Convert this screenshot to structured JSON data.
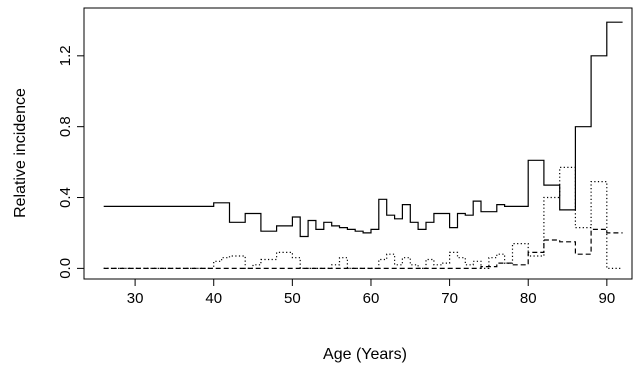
{
  "chart_data": {
    "type": "line",
    "title": "",
    "xlabel": "Age (Years)",
    "ylabel": "Relative incidence",
    "xlim": [
      23.5,
      93.2
    ],
    "ylim": [
      -0.06,
      1.47
    ],
    "x_ticks": [
      30,
      40,
      50,
      60,
      70,
      80,
      90
    ],
    "y_ticks": [
      0.0,
      0.4,
      0.8,
      1.2
    ],
    "x_tick_labels": [
      "30",
      "40",
      "50",
      "60",
      "70",
      "80",
      "90"
    ],
    "y_tick_labels": [
      "0.0",
      "0.4",
      "0.8",
      "1.2"
    ],
    "grid": false,
    "legend": "none",
    "step": true,
    "series": [
      {
        "line_style": "solid",
        "x": [
          26,
          40,
          42,
          44,
          46,
          48,
          50,
          51,
          52,
          53,
          54,
          55,
          56,
          57,
          58,
          59,
          60,
          61,
          62,
          63,
          64,
          65,
          66,
          67,
          68,
          70,
          71,
          72,
          73,
          74,
          76,
          77,
          80,
          82,
          84,
          86,
          88,
          90,
          92
        ],
        "y": [
          0.35,
          0.37,
          0.26,
          0.31,
          0.21,
          0.24,
          0.29,
          0.18,
          0.27,
          0.22,
          0.26,
          0.24,
          0.23,
          0.22,
          0.21,
          0.2,
          0.22,
          0.39,
          0.3,
          0.28,
          0.36,
          0.26,
          0.22,
          0.26,
          0.31,
          0.23,
          0.31,
          0.3,
          0.38,
          0.32,
          0.36,
          0.35,
          0.61,
          0.47,
          0.33,
          0.8,
          1.2,
          1.39,
          1.39
        ]
      },
      {
        "line_style": "dotted",
        "x": [
          26,
          40,
          41,
          42,
          44,
          45,
          46,
          48,
          50,
          51,
          55,
          56,
          57,
          60,
          61,
          62,
          63,
          64,
          65,
          66,
          67,
          68,
          69,
          70,
          71,
          72,
          73,
          74,
          75,
          76,
          77,
          78,
          80,
          82,
          84,
          86,
          88,
          90,
          92
        ],
        "y": [
          0.0,
          0.04,
          0.06,
          0.07,
          0.0,
          0.02,
          0.05,
          0.09,
          0.06,
          0.0,
          0.02,
          0.06,
          0.0,
          0.0,
          0.05,
          0.08,
          0.02,
          0.06,
          0.02,
          0.0,
          0.05,
          0.02,
          0.03,
          0.09,
          0.06,
          0.02,
          0.04,
          0.0,
          0.06,
          0.08,
          0.03,
          0.14,
          0.07,
          0.4,
          0.57,
          0.23,
          0.49,
          0.0,
          0.0
        ]
      },
      {
        "line_style": "dashed",
        "x": [
          26,
          74,
          76,
          78,
          80,
          82,
          84,
          86,
          88,
          90,
          92
        ],
        "y": [
          0.0,
          0.01,
          0.03,
          0.02,
          0.09,
          0.16,
          0.15,
          0.08,
          0.22,
          0.2,
          0.2
        ]
      }
    ]
  }
}
